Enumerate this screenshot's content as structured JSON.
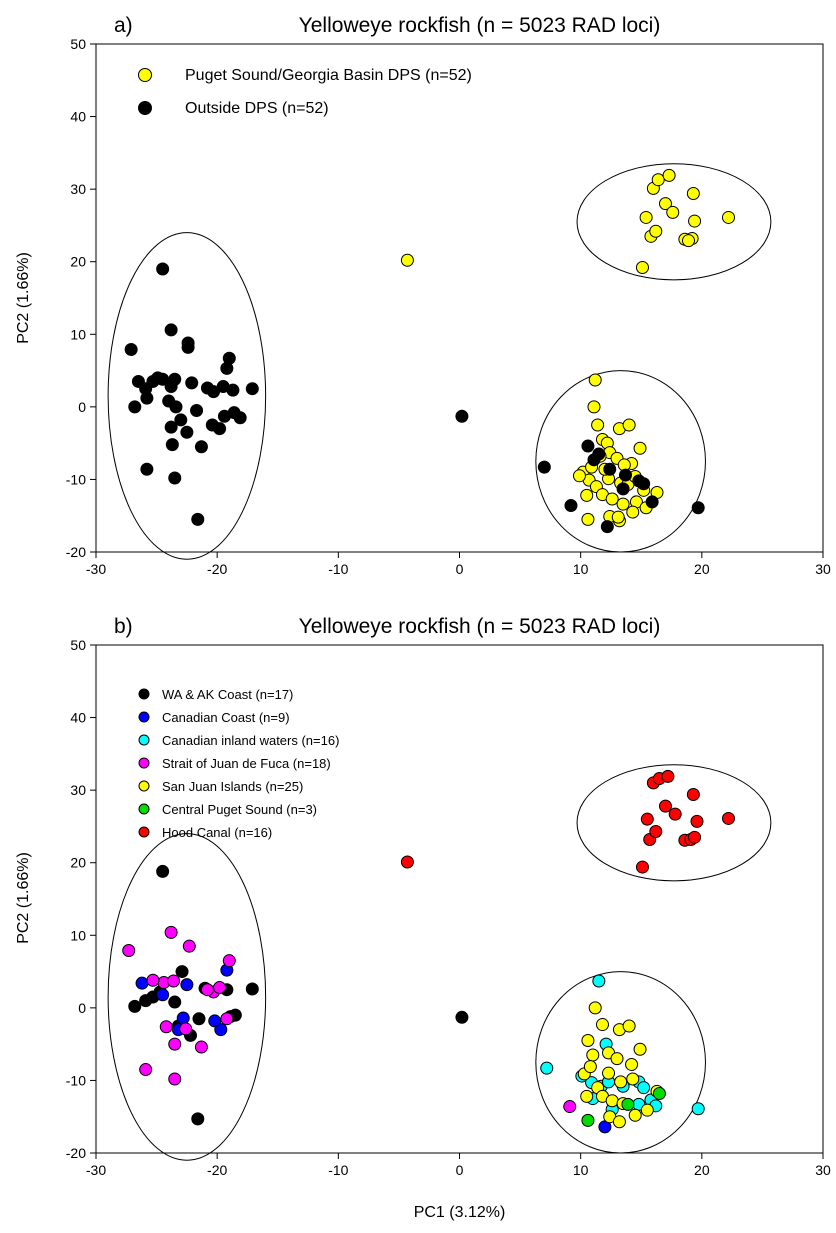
{
  "chart_data": [
    {
      "type": "scatter",
      "panel_label": "a)",
      "title": "Yelloweye rockfish (n = 5023 RAD loci)",
      "xlabel": "",
      "ylabel": "PC2 (1.66%)",
      "xlim": [
        -30,
        30
      ],
      "ylim": [
        -20,
        50
      ],
      "xticks": [
        -30,
        -20,
        -10,
        0,
        10,
        20,
        30
      ],
      "yticks": [
        -20,
        -10,
        0,
        10,
        20,
        30,
        40,
        50
      ],
      "legend_position": "top-left",
      "colors": {
        "yellow": "#ffff00",
        "black": "#000000"
      },
      "series": [
        {
          "name": "Puget Sound/Georgia Basin DPS (n=52)",
          "color": "#ffff00",
          "points": [
            [
              -4.3,
              20.2
            ],
            [
              15.1,
              19.2
            ],
            [
              15.8,
              23.5
            ],
            [
              16.2,
              24.2
            ],
            [
              18.6,
              23.1
            ],
            [
              19.2,
              23.2
            ],
            [
              18.9,
              22.9
            ],
            [
              15.4,
              26.1
            ],
            [
              17.0,
              28.0
            ],
            [
              17.6,
              26.8
            ],
            [
              19.4,
              25.6
            ],
            [
              22.2,
              26.1
            ],
            [
              16.0,
              30.1
            ],
            [
              16.4,
              31.3
            ],
            [
              17.3,
              31.9
            ],
            [
              19.3,
              29.4
            ],
            [
              11.2,
              3.7
            ],
            [
              11.1,
              0.0
            ],
            [
              11.4,
              -2.5
            ],
            [
              11.8,
              -4.5
            ],
            [
              12.2,
              -5.0
            ],
            [
              13.2,
              -3.0
            ],
            [
              14.0,
              -2.5
            ],
            [
              14.9,
              -5.7
            ],
            [
              12.4,
              -6.3
            ],
            [
              13.0,
              -7.1
            ],
            [
              14.2,
              -7.8
            ],
            [
              10.2,
              -9.0
            ],
            [
              10.7,
              -10.1
            ],
            [
              11.3,
              -11.0
            ],
            [
              12.3,
              -9.9
            ],
            [
              13.3,
              -10.5
            ],
            [
              13.9,
              -10.7
            ],
            [
              15.2,
              -11.5
            ],
            [
              16.3,
              -11.8
            ],
            [
              10.5,
              -12.2
            ],
            [
              11.8,
              -12.1
            ],
            [
              12.6,
              -12.7
            ],
            [
              13.5,
              -13.4
            ],
            [
              14.6,
              -13.1
            ],
            [
              15.4,
              -13.9
            ],
            [
              10.6,
              -15.5
            ],
            [
              12.4,
              -15.1
            ],
            [
              13.2,
              -15.7
            ],
            [
              10.9,
              -8.3
            ],
            [
              12.0,
              -8.6
            ],
            [
              13.6,
              -8.0
            ],
            [
              11.6,
              -6.8
            ],
            [
              9.9,
              -9.5
            ],
            [
              14.5,
              -9.6
            ],
            [
              13.1,
              -15.2
            ],
            [
              14.3,
              -14.5
            ]
          ]
        },
        {
          "name": "Outside DPS (n=52)",
          "color": "#000000",
          "points": [
            [
              -24.5,
              19.0
            ],
            [
              -23.8,
              10.6
            ],
            [
              -22.4,
              8.8
            ],
            [
              -22.4,
              8.2
            ],
            [
              -19.0,
              6.7
            ],
            [
              -19.2,
              5.3
            ],
            [
              -27.1,
              7.9
            ],
            [
              -26.5,
              3.5
            ],
            [
              -25.9,
              2.5
            ],
            [
              -25.3,
              3.5
            ],
            [
              -24.9,
              4.0
            ],
            [
              -24.5,
              3.8
            ],
            [
              -23.8,
              2.8
            ],
            [
              -23.5,
              3.8
            ],
            [
              -22.1,
              3.3
            ],
            [
              -20.8,
              2.6
            ],
            [
              -20.3,
              2.1
            ],
            [
              -19.5,
              2.8
            ],
            [
              -18.7,
              2.3
            ],
            [
              -17.1,
              2.5
            ],
            [
              -25.8,
              1.2
            ],
            [
              -24.0,
              0.8
            ],
            [
              -23.4,
              0.0
            ],
            [
              -21.7,
              -0.5
            ],
            [
              -19.4,
              -1.3
            ],
            [
              -18.6,
              -0.8
            ],
            [
              -18.1,
              -1.5
            ],
            [
              -26.8,
              0.0
            ],
            [
              -23.8,
              -2.8
            ],
            [
              -23.0,
              -1.8
            ],
            [
              -22.5,
              -3.5
            ],
            [
              -20.4,
              -2.5
            ],
            [
              -19.8,
              -3.0
            ],
            [
              -23.7,
              -5.2
            ],
            [
              -21.3,
              -5.5
            ],
            [
              -25.8,
              -8.6
            ],
            [
              -23.5,
              -9.8
            ],
            [
              -21.6,
              -15.5
            ],
            [
              0.2,
              -1.3
            ],
            [
              7.0,
              -8.3
            ],
            [
              9.2,
              -13.6
            ],
            [
              19.7,
              -13.9
            ],
            [
              10.6,
              -5.4
            ],
            [
              11.5,
              -6.5
            ],
            [
              12.4,
              -8.6
            ],
            [
              13.7,
              -9.4
            ],
            [
              14.8,
              -10.2
            ],
            [
              15.2,
              -10.6
            ],
            [
              15.9,
              -13.1
            ],
            [
              12.2,
              -16.5
            ],
            [
              13.5,
              -11.3
            ],
            [
              11.1,
              -7.3
            ]
          ]
        }
      ],
      "ellipses": [
        {
          "cx": -22.5,
          "cy": 1.5,
          "rx": 6.5,
          "ry": 22.5
        },
        {
          "cx": 13.3,
          "cy": -7.5,
          "rx": 7.0,
          "ry": 12.5
        },
        {
          "cx": 17.7,
          "cy": 25.5,
          "rx": 8.0,
          "ry": 8.0
        }
      ]
    },
    {
      "type": "scatter",
      "panel_label": "b)",
      "title": "Yelloweye rockfish (n = 5023 RAD loci)",
      "xlabel": "PC1 (3.12%)",
      "ylabel": "PC2 (1.66%)",
      "xlim": [
        -30,
        30
      ],
      "ylim": [
        -20,
        50
      ],
      "xticks": [
        -30,
        -20,
        -10,
        0,
        10,
        20,
        30
      ],
      "yticks": [
        -20,
        -10,
        0,
        10,
        20,
        30,
        40,
        50
      ],
      "legend_position": "top-left",
      "colors": {
        "black": "#000000",
        "blue": "#0000ff",
        "cyan": "#00ffff",
        "magenta": "#ff00ff",
        "yellow": "#ffff00",
        "green": "#00dd00",
        "red": "#ff0000"
      },
      "series": [
        {
          "name": "WA & AK Coast (n=17)",
          "color": "#000000",
          "points": [
            [
              -24.5,
              18.8
            ],
            [
              -26.8,
              0.2
            ],
            [
              -25.9,
              1.0
            ],
            [
              -24.7,
              2.2
            ],
            [
              -22.9,
              5.0
            ],
            [
              -23.5,
              0.8
            ],
            [
              -21.0,
              2.7
            ],
            [
              -19.2,
              2.5
            ],
            [
              -18.5,
              -1.0
            ],
            [
              -17.1,
              2.6
            ],
            [
              -21.5,
              -1.5
            ],
            [
              -22.2,
              -3.8
            ],
            [
              -21.6,
              -15.3
            ],
            [
              0.2,
              -1.3
            ],
            [
              -25.3,
              1.5
            ],
            [
              -23.2,
              -2.5
            ],
            [
              -18.9,
              -1.2
            ]
          ]
        },
        {
          "name": "Canadian Coast (n=9)",
          "color": "#0000ff",
          "points": [
            [
              -26.2,
              3.4
            ],
            [
              -22.5,
              3.2
            ],
            [
              -19.2,
              5.2
            ],
            [
              -22.8,
              -1.4
            ],
            [
              -19.7,
              -3.0
            ],
            [
              -23.2,
              -3.0
            ],
            [
              12.0,
              -16.4
            ],
            [
              -24.5,
              1.8
            ],
            [
              -20.2,
              -1.8
            ]
          ]
        },
        {
          "name": "Canadian inland waters (n=16)",
          "color": "#00ffff",
          "points": [
            [
              11.5,
              3.7
            ],
            [
              12.1,
              -5.0
            ],
            [
              7.2,
              -8.3
            ],
            [
              10.1,
              -9.4
            ],
            [
              10.9,
              -10.3
            ],
            [
              11.7,
              -10.8
            ],
            [
              12.3,
              -10.2
            ],
            [
              13.5,
              -10.8
            ],
            [
              14.8,
              -10.2
            ],
            [
              15.2,
              -11.0
            ],
            [
              15.8,
              -12.7
            ],
            [
              16.2,
              -13.5
            ],
            [
              19.7,
              -13.9
            ],
            [
              12.6,
              -14.0
            ],
            [
              14.8,
              -13.3
            ],
            [
              11.0,
              -12.5
            ]
          ]
        },
        {
          "name": "Strait of Juan de Fuca (n=18)",
          "color": "#ff00ff",
          "points": [
            [
              -27.3,
              7.9
            ],
            [
              -23.8,
              10.4
            ],
            [
              -22.3,
              8.5
            ],
            [
              -19.0,
              6.5
            ],
            [
              -24.4,
              3.5
            ],
            [
              -25.3,
              3.8
            ],
            [
              -23.6,
              3.7
            ],
            [
              -20.3,
              2.2
            ],
            [
              -19.8,
              2.8
            ],
            [
              -24.2,
              -2.6
            ],
            [
              -23.5,
              -5.0
            ],
            [
              -21.3,
              -5.4
            ],
            [
              -22.6,
              -2.9
            ],
            [
              -19.2,
              -1.5
            ],
            [
              -25.9,
              -8.5
            ],
            [
              -23.5,
              -9.8
            ],
            [
              9.1,
              -13.6
            ],
            [
              -20.8,
              2.5
            ]
          ]
        },
        {
          "name": "San Juan Islands (n=25)",
          "color": "#ffff00",
          "points": [
            [
              11.2,
              0.0
            ],
            [
              11.8,
              -2.3
            ],
            [
              10.6,
              -4.5
            ],
            [
              11.0,
              -6.5
            ],
            [
              13.2,
              -3.0
            ],
            [
              14.0,
              -2.5
            ],
            [
              14.9,
              -5.7
            ],
            [
              12.3,
              -6.2
            ],
            [
              13.0,
              -7.0
            ],
            [
              14.2,
              -7.8
            ],
            [
              10.3,
              -9.1
            ],
            [
              11.4,
              -11.0
            ],
            [
              12.3,
              -9.0
            ],
            [
              13.3,
              -10.2
            ],
            [
              10.5,
              -12.2
            ],
            [
              11.8,
              -12.2
            ],
            [
              12.6,
              -12.8
            ],
            [
              13.5,
              -13.2
            ],
            [
              14.5,
              -14.8
            ],
            [
              15.5,
              -14.1
            ],
            [
              12.4,
              -15.0
            ],
            [
              13.2,
              -15.7
            ],
            [
              10.8,
              -8.1
            ],
            [
              14.3,
              -9.8
            ],
            [
              16.3,
              -11.5
            ]
          ]
        },
        {
          "name": "Central Puget Sound (n=3)",
          "color": "#00dd00",
          "points": [
            [
              10.6,
              -15.5
            ],
            [
              13.9,
              -13.3
            ],
            [
              16.5,
              -11.8
            ]
          ]
        },
        {
          "name": "Hood Canal (n=16)",
          "color": "#ff0000",
          "points": [
            [
              -4.3,
              20.1
            ],
            [
              15.1,
              19.4
            ],
            [
              15.7,
              23.2
            ],
            [
              16.2,
              24.3
            ],
            [
              18.6,
              23.1
            ],
            [
              19.1,
              23.2
            ],
            [
              19.4,
              23.5
            ],
            [
              15.5,
              26.0
            ],
            [
              17.0,
              27.8
            ],
            [
              17.8,
              26.7
            ],
            [
              19.6,
              25.7
            ],
            [
              22.2,
              26.1
            ],
            [
              16.0,
              31.0
            ],
            [
              16.5,
              31.6
            ],
            [
              17.2,
              31.9
            ],
            [
              19.3,
              29.4
            ]
          ]
        }
      ],
      "ellipses": [
        {
          "cx": -22.5,
          "cy": 1.5,
          "rx": 6.5,
          "ry": 22.5
        },
        {
          "cx": 13.3,
          "cy": -7.5,
          "rx": 7.0,
          "ry": 12.5
        },
        {
          "cx": 17.7,
          "cy": 25.5,
          "rx": 8.0,
          "ry": 8.0
        }
      ]
    }
  ]
}
